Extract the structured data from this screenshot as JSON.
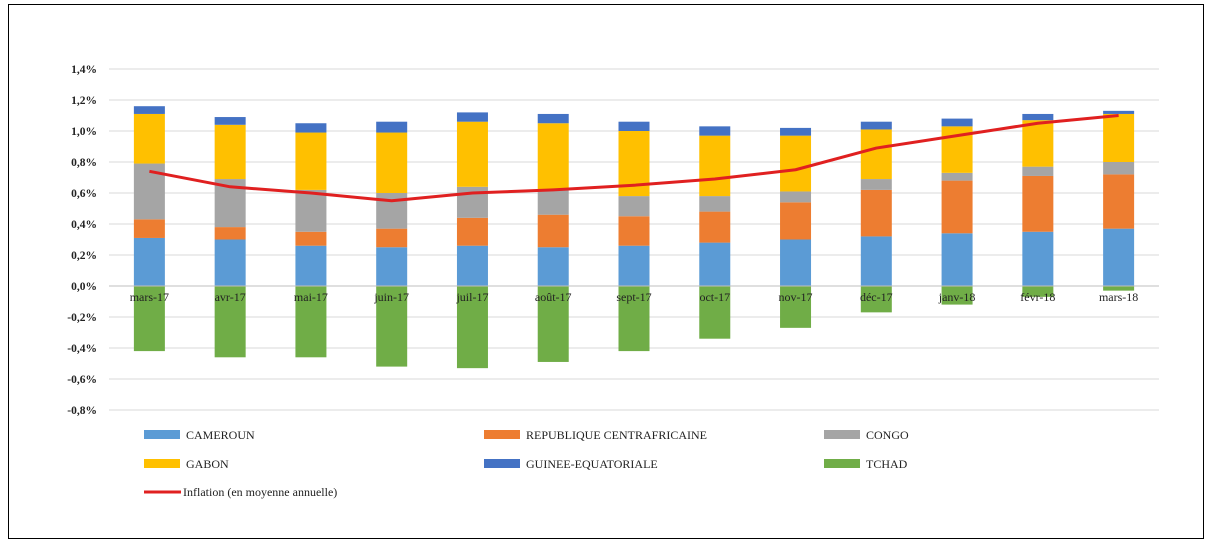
{
  "chart_data": {
    "type": "bar",
    "stacked": true,
    "categories": [
      "mars-17",
      "avr-17",
      "mai-17",
      "juin-17",
      "juil-17",
      "août-17",
      "sept-17",
      "oct-17",
      "nov-17",
      "déc-17",
      "janv-18",
      "févr-18",
      "mars-18"
    ],
    "ylim": [
      -0.8,
      1.4
    ],
    "yticks": [
      "-0,8%",
      "-0,6%",
      "-0,4%",
      "-0,2%",
      "0,0%",
      "0,2%",
      "0,4%",
      "0,6%",
      "0,8%",
      "1,0%",
      "1,2%",
      "1,4%"
    ],
    "ytick_values": [
      -0.8,
      -0.6,
      -0.4,
      -0.2,
      0.0,
      0.2,
      0.4,
      0.6,
      0.8,
      1.0,
      1.2,
      1.4
    ],
    "grid": true,
    "legend_position": "bottom",
    "series": [
      {
        "name": "CAMEROUN",
        "color": "#5b9bd5",
        "values": [
          0.31,
          0.3,
          0.26,
          0.25,
          0.26,
          0.25,
          0.26,
          0.28,
          0.3,
          0.32,
          0.34,
          0.35,
          0.37
        ]
      },
      {
        "name": "REPUBLIQUE CENTRAFRICAINE",
        "color": "#ed7d31",
        "values": [
          0.12,
          0.08,
          0.09,
          0.12,
          0.18,
          0.21,
          0.19,
          0.2,
          0.24,
          0.3,
          0.34,
          0.36,
          0.35
        ]
      },
      {
        "name": "CONGO",
        "color": "#a5a5a5",
        "values": [
          0.36,
          0.31,
          0.27,
          0.23,
          0.2,
          0.16,
          0.13,
          0.1,
          0.07,
          0.07,
          0.05,
          0.06,
          0.08
        ]
      },
      {
        "name": "GABON",
        "color": "#ffc000",
        "values": [
          0.32,
          0.35,
          0.37,
          0.39,
          0.42,
          0.43,
          0.42,
          0.39,
          0.36,
          0.32,
          0.3,
          0.3,
          0.31
        ]
      },
      {
        "name": "GUINEE-EQUATORIALE",
        "color": "#4472c4",
        "values": [
          0.05,
          0.05,
          0.06,
          0.07,
          0.06,
          0.06,
          0.06,
          0.06,
          0.05,
          0.05,
          0.05,
          0.04,
          0.02
        ]
      },
      {
        "name": "TCHAD",
        "color": "#70ad47",
        "values": [
          -0.42,
          -0.46,
          -0.46,
          -0.52,
          -0.53,
          -0.49,
          -0.42,
          -0.34,
          -0.27,
          -0.17,
          -0.12,
          -0.07,
          -0.03
        ]
      }
    ],
    "line_series": {
      "name": "Inflation (en moyenne annuelle)",
      "color": "#e02020",
      "values": [
        0.74,
        0.64,
        0.6,
        0.55,
        0.6,
        0.62,
        0.65,
        0.69,
        0.75,
        0.89,
        0.97,
        1.05,
        1.1
      ]
    }
  }
}
